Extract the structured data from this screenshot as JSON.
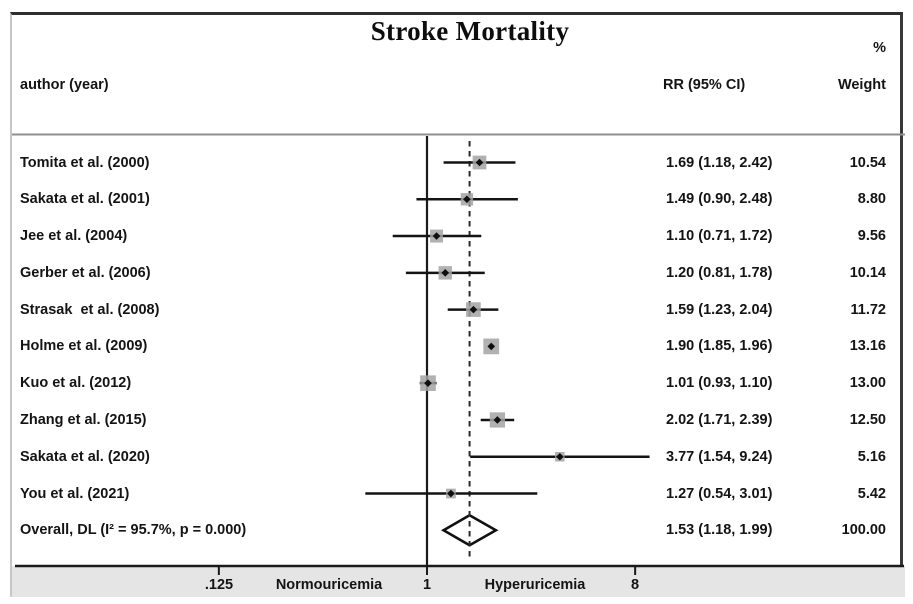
{
  "header": {
    "percent_sign": "%",
    "author_col": "author (year)",
    "rr_col": "RR (95% CI)",
    "weight_col": "Weight"
  },
  "axis": {
    "left_region_label": "Normouricemia",
    "right_region_label": "Hyperuricemia"
  },
  "colors": {
    "text": "#141414",
    "axis_line": "#1a1a1a",
    "null_line": "#1a1a1a",
    "overall_dashed_line": "#2a2a2a",
    "ci_line": "#141414",
    "weight_square": "#a3a3a3",
    "point_marker": "#0f0f0f",
    "diamond_outline": "#111111",
    "footer_band": "#e5e5e5",
    "header_separator": "#8f8f8f"
  },
  "chart_data": {
    "type": "forest",
    "title": "Stroke Mortality",
    "effect_measure_label": "RR (95% CI)",
    "x_scale": "log",
    "x_ticks": [
      {
        "label": ".125",
        "value": 0.125
      },
      {
        "label": "1",
        "value": 1
      },
      {
        "label": "8",
        "value": 8
      }
    ],
    "null_line_value": 1,
    "overall_line_value": 1.53,
    "heterogeneity": "I² = 95.7%, p = 0.000",
    "model": "DL",
    "studies": [
      {
        "label": "Tomita et al. (2000)",
        "rr": 1.69,
        "ci_low": 1.18,
        "ci_high": 2.42,
        "rr_text": "1.69 (1.18, 2.42)",
        "weight": 10.54,
        "weight_text": "10.54"
      },
      {
        "label": "Sakata et al. (2001)",
        "rr": 1.49,
        "ci_low": 0.9,
        "ci_high": 2.48,
        "rr_text": "1.49 (0.90, 2.48)",
        "weight": 8.8,
        "weight_text": "8.80"
      },
      {
        "label": "Jee et al. (2004)",
        "rr": 1.1,
        "ci_low": 0.71,
        "ci_high": 1.72,
        "rr_text": "1.10 (0.71, 1.72)",
        "weight": 9.56,
        "weight_text": "9.56"
      },
      {
        "label": "Gerber et al. (2006)",
        "rr": 1.2,
        "ci_low": 0.81,
        "ci_high": 1.78,
        "rr_text": "1.20 (0.81, 1.78)",
        "weight": 10.14,
        "weight_text": "10.14"
      },
      {
        "label": "Strasak  et al. (2008)",
        "rr": 1.59,
        "ci_low": 1.23,
        "ci_high": 2.04,
        "rr_text": "1.59 (1.23, 2.04)",
        "weight": 11.72,
        "weight_text": "11.72"
      },
      {
        "label": "Holme et al. (2009)",
        "rr": 1.9,
        "ci_low": 1.85,
        "ci_high": 1.96,
        "rr_text": "1.90 (1.85, 1.96)",
        "weight": 13.16,
        "weight_text": "13.16"
      },
      {
        "label": "Kuo et al. (2012)",
        "rr": 1.01,
        "ci_low": 0.93,
        "ci_high": 1.1,
        "rr_text": "1.01 (0.93, 1.10)",
        "weight": 13.0,
        "weight_text": "13.00"
      },
      {
        "label": "Zhang et al. (2015)",
        "rr": 2.02,
        "ci_low": 1.71,
        "ci_high": 2.39,
        "rr_text": "2.02 (1.71, 2.39)",
        "weight": 12.5,
        "weight_text": "12.50"
      },
      {
        "label": "Sakata et al. (2020)",
        "rr": 3.77,
        "ci_low": 1.54,
        "ci_high": 9.24,
        "rr_text": "3.77 (1.54, 9.24)",
        "weight": 5.16,
        "weight_text": "5.16"
      },
      {
        "label": "You et al. (2021)",
        "rr": 1.27,
        "ci_low": 0.54,
        "ci_high": 3.01,
        "rr_text": "1.27 (0.54, 3.01)",
        "weight": 5.42,
        "weight_text": "5.42"
      }
    ],
    "overall": {
      "label": "Overall, DL (I² = 95.7%, p = 0.000)",
      "rr": 1.53,
      "ci_low": 1.18,
      "ci_high": 1.99,
      "rr_text": "1.53 (1.18, 1.99)",
      "weight": 100.0,
      "weight_text": "100.00"
    }
  }
}
